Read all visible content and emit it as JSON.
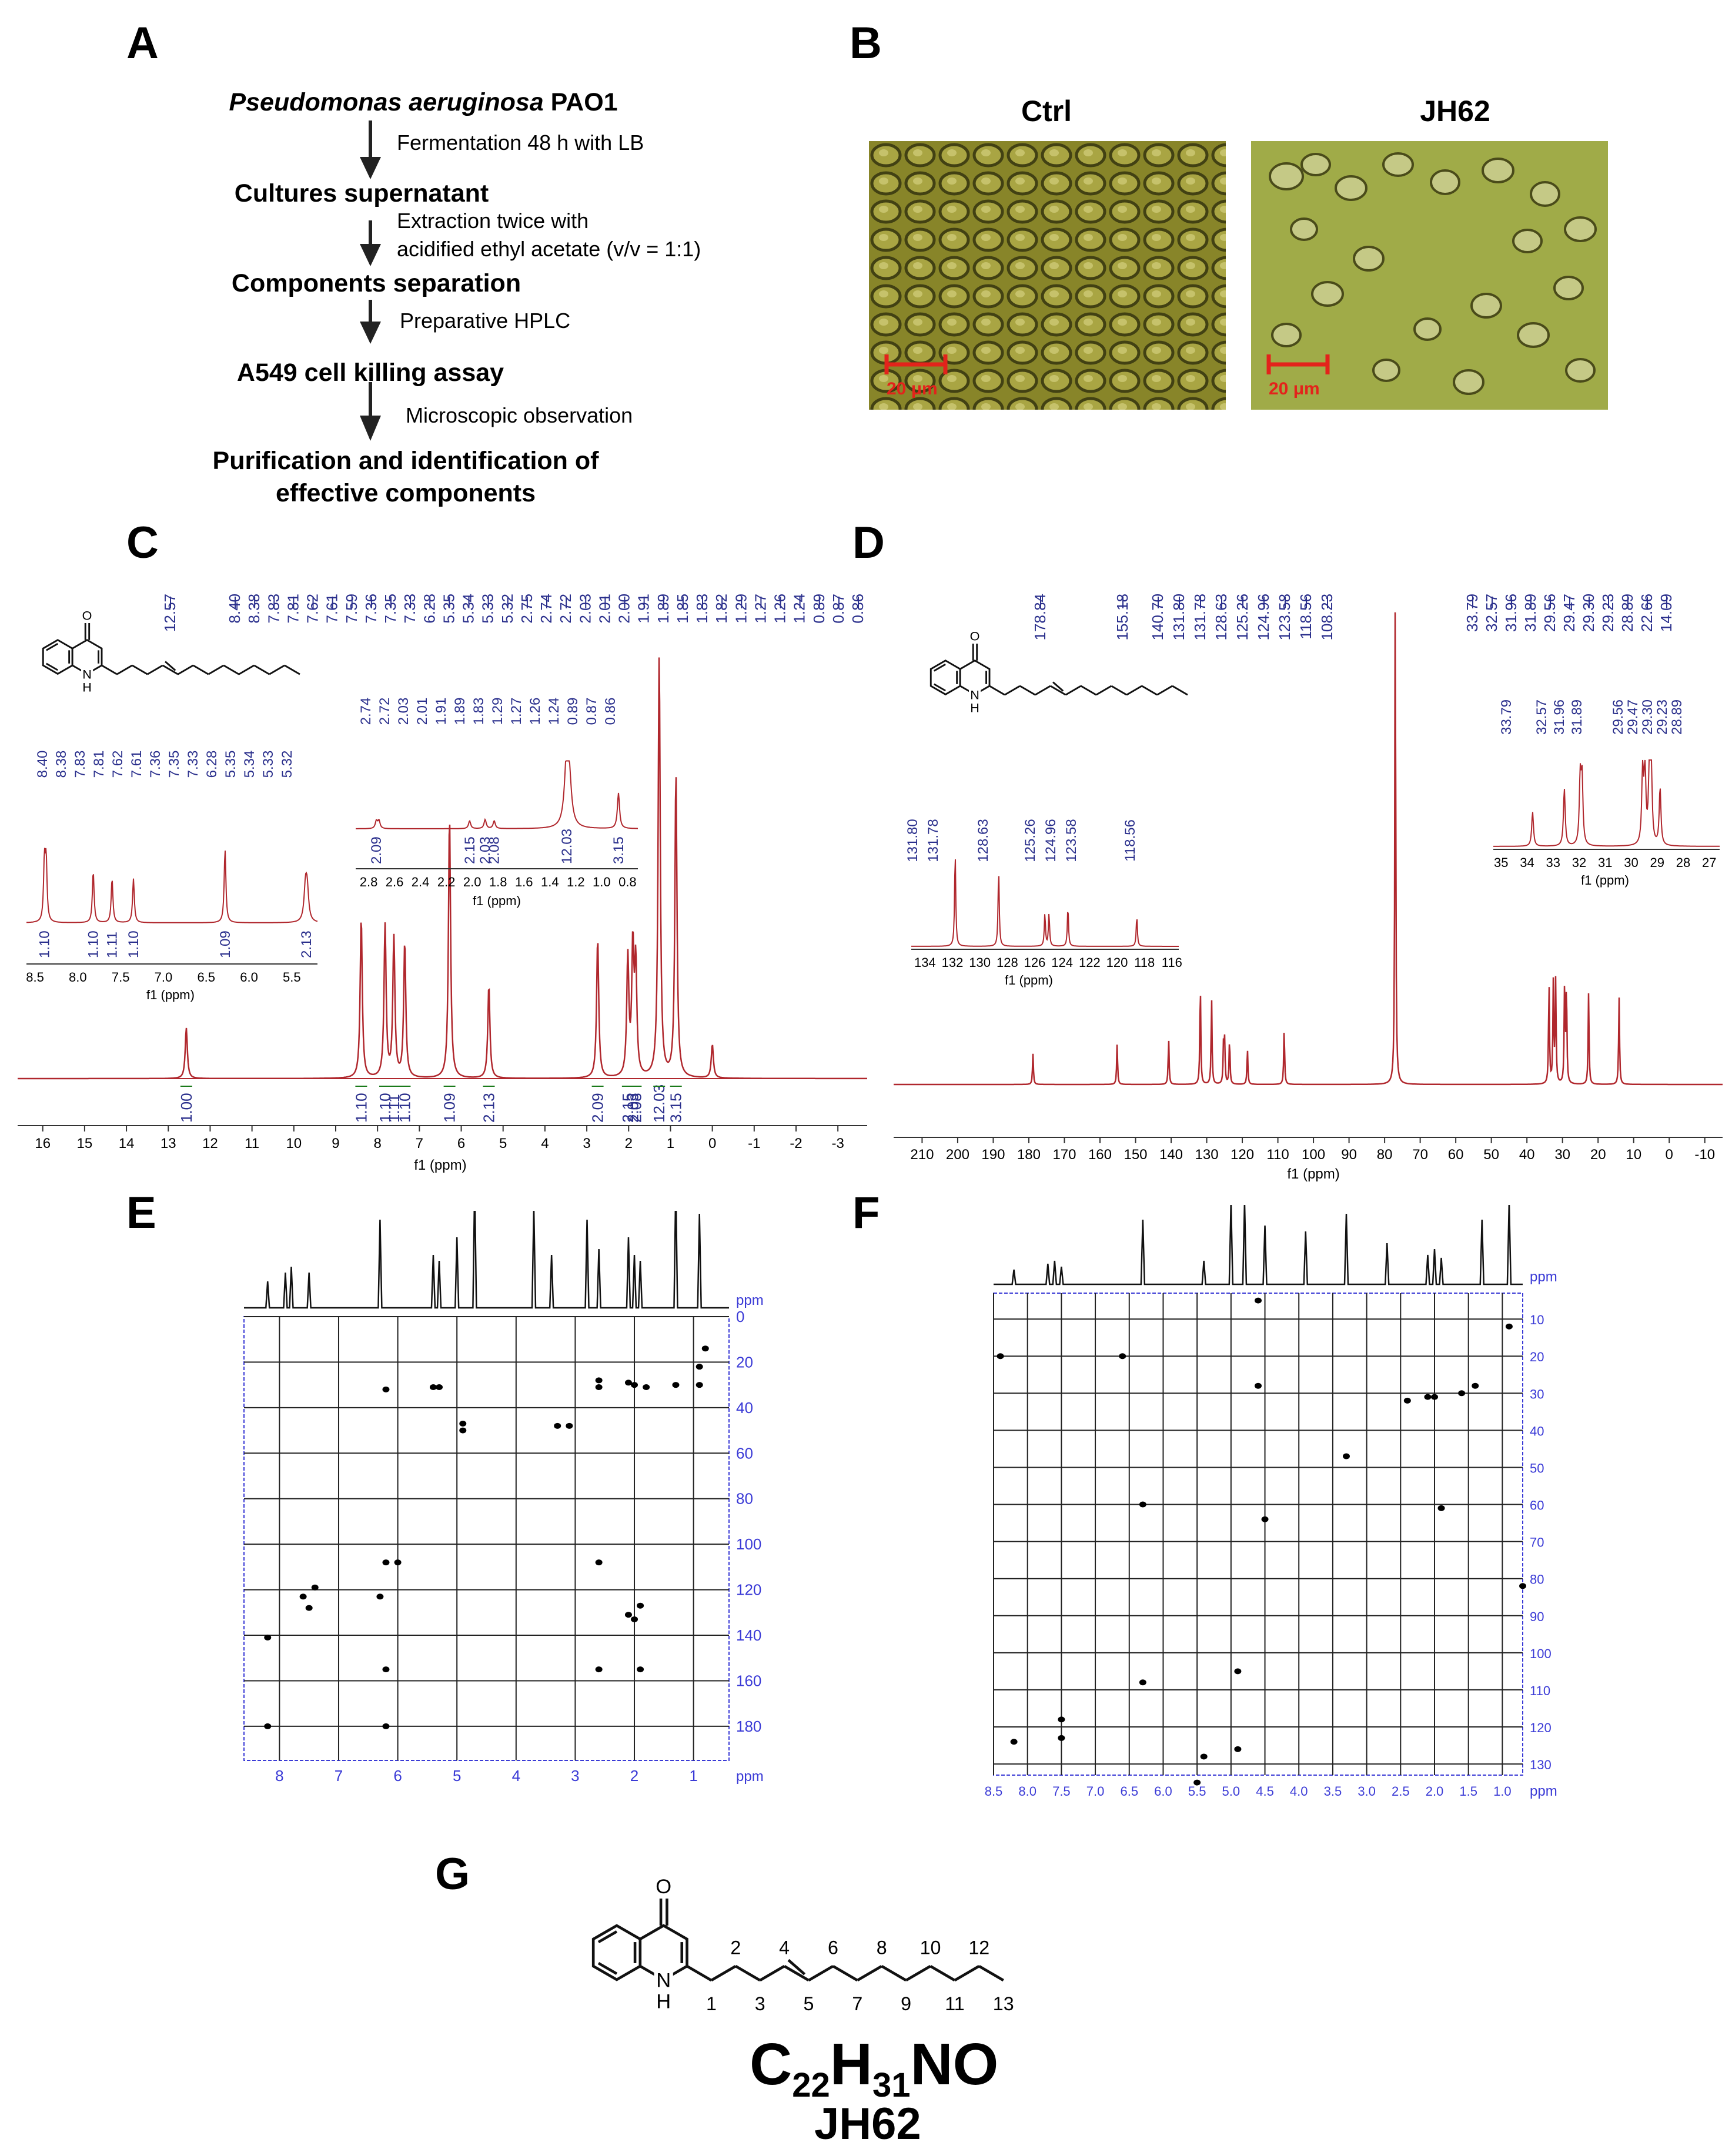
{
  "panels": {
    "A": "A",
    "B": "B",
    "C": "C",
    "D": "D",
    "E": "E",
    "F": "F",
    "G": "G"
  },
  "flow": {
    "title_italic": "Pseudomonas aeruginosa",
    "title_strain": "PAO1",
    "step1_note": "Fermentation 48 h with LB",
    "step2": "Cultures supernatant",
    "step2_note_line1": "Extraction twice with",
    "step2_note_line2": "acidified ethyl acetate (v/v = 1:1)",
    "step3": "Components separation",
    "step3_note": "Preparative HPLC",
    "step4": "A549 cell killing assay",
    "step4_note": "Microscopic observation",
    "step5_line1": "Purification and identification of",
    "step5_line2": "effective components"
  },
  "micrographs": {
    "ctrl_title": "Ctrl",
    "jh62_title": "JH62",
    "scale_label": "20 μm",
    "scale_color": "#e3231b"
  },
  "colors": {
    "spectrum": "#b0272d",
    "label_blue": "#2a2f8c",
    "integral_green": "#1a7a1a",
    "grid_blue": "#3a3ad6"
  },
  "chart_data": [
    {
      "type": "line",
      "name_ref": "C",
      "xlabel": "f1 (ppm)",
      "xlim": [
        16,
        -3.5
      ],
      "xticks": [
        "16",
        "15",
        "14",
        "13",
        "12",
        "11",
        "10",
        "9",
        "8",
        "7",
        "6",
        "5",
        "4",
        "3",
        "2",
        "1",
        "0",
        "-1",
        "-2",
        "-3"
      ],
      "peak_labels": [
        "12.57",
        "8.40",
        "8.38",
        "7.83",
        "7.81",
        "7.62",
        "7.61",
        "7.59",
        "7.36",
        "7.35",
        "7.33",
        "6.28",
        "5.35",
        "5.34",
        "5.33",
        "5.32",
        "2.75",
        "2.74",
        "2.72",
        "2.03",
        "2.01",
        "2.00",
        "1.91",
        "1.89",
        "1.85",
        "1.83",
        "1.82",
        "1.29",
        "1.27",
        "1.26",
        "1.24",
        "0.89",
        "0.87",
        "0.86"
      ],
      "peaks": [
        {
          "x": 12.57,
          "h": 0.12
        },
        {
          "x": 8.39,
          "h": 0.38
        },
        {
          "x": 7.82,
          "h": 0.36
        },
        {
          "x": 7.61,
          "h": 0.33
        },
        {
          "x": 7.35,
          "h": 0.32
        },
        {
          "x": 6.28,
          "h": 0.62
        },
        {
          "x": 5.34,
          "h": 0.22
        },
        {
          "x": 2.74,
          "h": 0.33
        },
        {
          "x": 2.02,
          "h": 0.28
        },
        {
          "x": 1.9,
          "h": 0.3
        },
        {
          "x": 1.83,
          "h": 0.26
        },
        {
          "x": 1.27,
          "h": 1.0
        },
        {
          "x": 0.87,
          "h": 0.72
        },
        {
          "x": 0.0,
          "h": 0.08
        }
      ],
      "integrals": [
        {
          "x": 12.57,
          "v": "1.00"
        },
        {
          "x": 8.39,
          "v": "1.10"
        },
        {
          "x": 7.82,
          "v": "1.10"
        },
        {
          "x": 7.61,
          "v": "1.11"
        },
        {
          "x": 7.35,
          "v": "1.10"
        },
        {
          "x": 6.28,
          "v": "1.09"
        },
        {
          "x": 5.34,
          "v": "2.13"
        },
        {
          "x": 2.74,
          "v": "2.09"
        },
        {
          "x": 2.02,
          "v": "2.15"
        },
        {
          "x": 1.9,
          "v": "2.03"
        },
        {
          "x": 1.83,
          "v": "2.08"
        },
        {
          "x": 1.27,
          "v": "12.03"
        },
        {
          "x": 0.87,
          "v": "3.15"
        }
      ],
      "inset1": {
        "xlabel": "f1 (ppm)",
        "xticks": [
          "8.5",
          "8.0",
          "7.5",
          "7.0",
          "6.5",
          "6.0",
          "5.5"
        ],
        "peak_labels": [
          "8.40",
          "8.38",
          "7.83",
          "7.81",
          "7.62",
          "7.61",
          "7.36",
          "7.35",
          "7.33",
          "6.28",
          "5.35",
          "5.34",
          "5.33",
          "5.32"
        ],
        "integrals": [
          "1.10",
          "1.10",
          "1.11",
          "1.10",
          "1.09",
          "2.13"
        ]
      },
      "inset2": {
        "xlabel": "f1 (ppm)",
        "xticks": [
          "2.8",
          "2.6",
          "2.4",
          "2.2",
          "2.0",
          "1.8",
          "1.6",
          "1.4",
          "1.2",
          "1.0",
          "0.8"
        ],
        "peak_labels": [
          "2.74",
          "2.72",
          "2.03",
          "2.01",
          "1.91",
          "1.89",
          "1.83",
          "1.29",
          "1.27",
          "1.26",
          "1.24",
          "0.89",
          "0.87",
          "0.86"
        ],
        "integrals": [
          "2.09",
          "2.15",
          "2.03",
          "2.08",
          "12.03",
          "3.15"
        ]
      }
    },
    {
      "type": "line",
      "name_ref": "D",
      "xlabel": "f1 (ppm)",
      "xlim": [
        218,
        -15
      ],
      "xticks": [
        "210",
        "200",
        "190",
        "180",
        "170",
        "160",
        "150",
        "140",
        "130",
        "120",
        "110",
        "100",
        "90",
        "80",
        "70",
        "60",
        "50",
        "40",
        "30",
        "20",
        "10",
        "0",
        "-10"
      ],
      "peak_labels": [
        "178.84",
        "155.18",
        "140.70",
        "131.80",
        "131.78",
        "128.63",
        "125.26",
        "124.96",
        "123.58",
        "118.56",
        "108.23",
        "33.79",
        "32.57",
        "31.96",
        "31.89",
        "29.56",
        "29.47",
        "29.30",
        "29.23",
        "28.89",
        "22.66",
        "14.09"
      ],
      "peaks": [
        {
          "x": 178.84,
          "h": 0.06
        },
        {
          "x": 155.18,
          "h": 0.08
        },
        {
          "x": 140.7,
          "h": 0.09
        },
        {
          "x": 131.8,
          "h": 0.2
        },
        {
          "x": 128.63,
          "h": 0.17
        },
        {
          "x": 125.26,
          "h": 0.08
        },
        {
          "x": 124.96,
          "h": 0.08
        },
        {
          "x": 123.58,
          "h": 0.09
        },
        {
          "x": 118.56,
          "h": 0.07
        },
        {
          "x": 108.23,
          "h": 0.11
        },
        {
          "x": 77.0,
          "h": 1.0
        },
        {
          "x": 33.79,
          "h": 0.2
        },
        {
          "x": 32.57,
          "h": 0.2
        },
        {
          "x": 31.92,
          "h": 0.2
        },
        {
          "x": 29.4,
          "h": 0.2
        },
        {
          "x": 28.89,
          "h": 0.19
        },
        {
          "x": 22.66,
          "h": 0.18
        },
        {
          "x": 14.09,
          "h": 0.17
        }
      ],
      "inset1": {
        "xlabel": "f1 (ppm)",
        "xticks": [
          "134",
          "132",
          "130",
          "128",
          "126",
          "124",
          "122",
          "120",
          "118",
          "116"
        ],
        "peak_labels": [
          "131.80",
          "131.78",
          "128.63",
          "125.26",
          "124.96",
          "123.58",
          "118.56"
        ]
      },
      "inset2": {
        "xlabel": "f1 (ppm)",
        "xticks": [
          "35",
          "34",
          "33",
          "32",
          "31",
          "30",
          "29",
          "28",
          "27"
        ],
        "peak_labels": [
          "33.79",
          "32.57",
          "31.96",
          "31.89",
          "29.56",
          "29.47",
          "29.30",
          "29.23",
          "28.89"
        ]
      }
    },
    {
      "type": "scatter",
      "name_ref": "E",
      "x_unit": "ppm",
      "y_unit": "ppm",
      "xticks": [
        "8",
        "7",
        "6",
        "5",
        "4",
        "3",
        "2",
        "1"
      ],
      "yticks": [
        "0",
        "20",
        "40",
        "60",
        "80",
        "100",
        "120",
        "140",
        "160",
        "180"
      ],
      "xlim": [
        8.6,
        0.4
      ],
      "ylim": [
        0,
        195
      ],
      "points": [
        [
          6.2,
          32
        ],
        [
          5.4,
          31
        ],
        [
          5.3,
          31
        ],
        [
          4.9,
          47
        ],
        [
          4.9,
          50
        ],
        [
          3.3,
          48
        ],
        [
          3.1,
          48
        ],
        [
          2.6,
          28
        ],
        [
          2.6,
          31
        ],
        [
          2.1,
          29
        ],
        [
          2.0,
          30
        ],
        [
          1.8,
          31
        ],
        [
          1.3,
          30
        ],
        [
          0.9,
          22
        ],
        [
          0.9,
          30
        ],
        [
          0.8,
          14
        ],
        [
          6.2,
          108
        ],
        [
          6.0,
          108
        ],
        [
          2.6,
          108
        ],
        [
          7.6,
          123
        ],
        [
          7.5,
          128
        ],
        [
          7.4,
          119
        ],
        [
          6.3,
          123
        ],
        [
          2.1,
          131
        ],
        [
          2.0,
          133
        ],
        [
          1.9,
          127
        ],
        [
          8.2,
          141
        ],
        [
          6.2,
          155
        ],
        [
          2.6,
          155
        ],
        [
          1.9,
          155
        ],
        [
          8.2,
          180
        ],
        [
          6.2,
          180
        ]
      ]
    },
    {
      "type": "scatter",
      "name_ref": "F",
      "x_unit": "ppm",
      "y_unit": "ppm",
      "xticks": [
        "8.5",
        "8.0",
        "7.5",
        "7.0",
        "6.5",
        "6.0",
        "5.5",
        "5.0",
        "4.5",
        "4.0",
        "3.5",
        "3.0",
        "2.5",
        "2.0",
        "1.5",
        "1.0"
      ],
      "yticks": [
        "10",
        "20",
        "30",
        "40",
        "50",
        "60",
        "70",
        "80",
        "90",
        "100",
        "110",
        "120",
        "130"
      ],
      "xlim": [
        8.5,
        0.7
      ],
      "ylim": [
        3,
        133
      ],
      "points": [
        [
          4.6,
          5
        ],
        [
          0.9,
          12
        ],
        [
          1.4,
          28
        ],
        [
          1.6,
          30
        ],
        [
          2.0,
          31
        ],
        [
          2.1,
          31
        ],
        [
          2.4,
          32
        ],
        [
          3.3,
          47
        ],
        [
          6.3,
          108
        ],
        [
          7.5,
          118
        ],
        [
          8.2,
          124
        ],
        [
          7.5,
          123
        ],
        [
          5.4,
          128
        ],
        [
          4.9,
          126
        ],
        [
          4.5,
          64
        ],
        [
          6.6,
          20
        ],
        [
          8.4,
          20
        ],
        [
          4.6,
          28
        ],
        [
          6.3,
          60
        ],
        [
          1.9,
          61
        ],
        [
          0.7,
          82
        ],
        [
          4.9,
          105
        ],
        [
          5.5,
          135
        ]
      ]
    }
  ],
  "structure": {
    "oxygen": "O",
    "nh_n": "N",
    "nh_h": "H",
    "numbers": [
      "1",
      "2",
      "3",
      "4",
      "5",
      "6",
      "7",
      "8",
      "9",
      "10",
      "11",
      "12",
      "13"
    ],
    "formula_C": "C",
    "formula_22": "22",
    "formula_H": "H",
    "formula_31": "31",
    "formula_NO": "NO",
    "compound": "JH62"
  }
}
